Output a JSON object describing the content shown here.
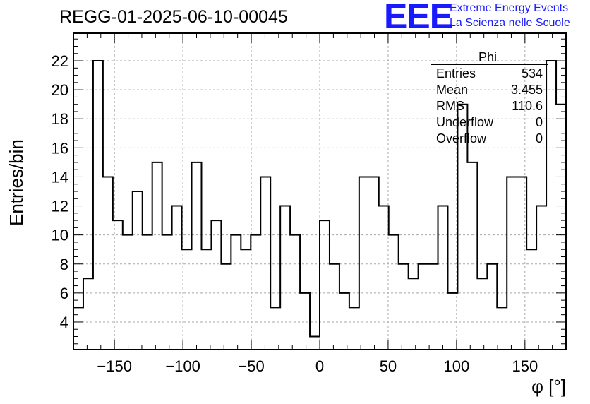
{
  "chart_data": {
    "type": "histogram",
    "title": "REGG-01-2025-06-10-00045",
    "xlabel": "φ [°]",
    "ylabel": "Entries/bin",
    "xlim": [
      -180,
      180
    ],
    "ylim": [
      2.1,
      23.9
    ],
    "bin_width": 7.2,
    "xticks": [
      -150,
      -100,
      -50,
      0,
      50,
      100,
      150
    ],
    "yticks": [
      4,
      6,
      8,
      10,
      12,
      14,
      16,
      18,
      20,
      22
    ],
    "grid": true,
    "values": [
      5,
      7,
      22,
      14,
      11,
      10,
      13,
      10,
      15,
      10,
      12,
      9,
      15,
      9,
      11,
      8,
      10,
      9,
      10,
      14,
      5,
      12,
      10,
      6,
      3,
      11,
      8,
      6,
      5,
      14,
      14,
      12,
      10,
      8,
      7,
      8,
      8,
      12,
      6,
      19,
      15,
      7,
      8,
      5,
      14,
      14,
      9,
      12,
      22,
      19
    ],
    "stats": {
      "name": "Phi",
      "rows": [
        {
          "label": "Entries",
          "value": "534"
        },
        {
          "label": "Mean",
          "value": "3.455"
        },
        {
          "label": "RMS",
          "value": "110.6"
        },
        {
          "label": "Underflow",
          "value": "0"
        },
        {
          "label": "Overflow",
          "value": "0"
        }
      ]
    }
  },
  "logo": {
    "mark": "EEE",
    "line1": "Extreme Energy Events",
    "line2": "La Scienza nelle Scuole",
    "color": "#1a1aff"
  }
}
